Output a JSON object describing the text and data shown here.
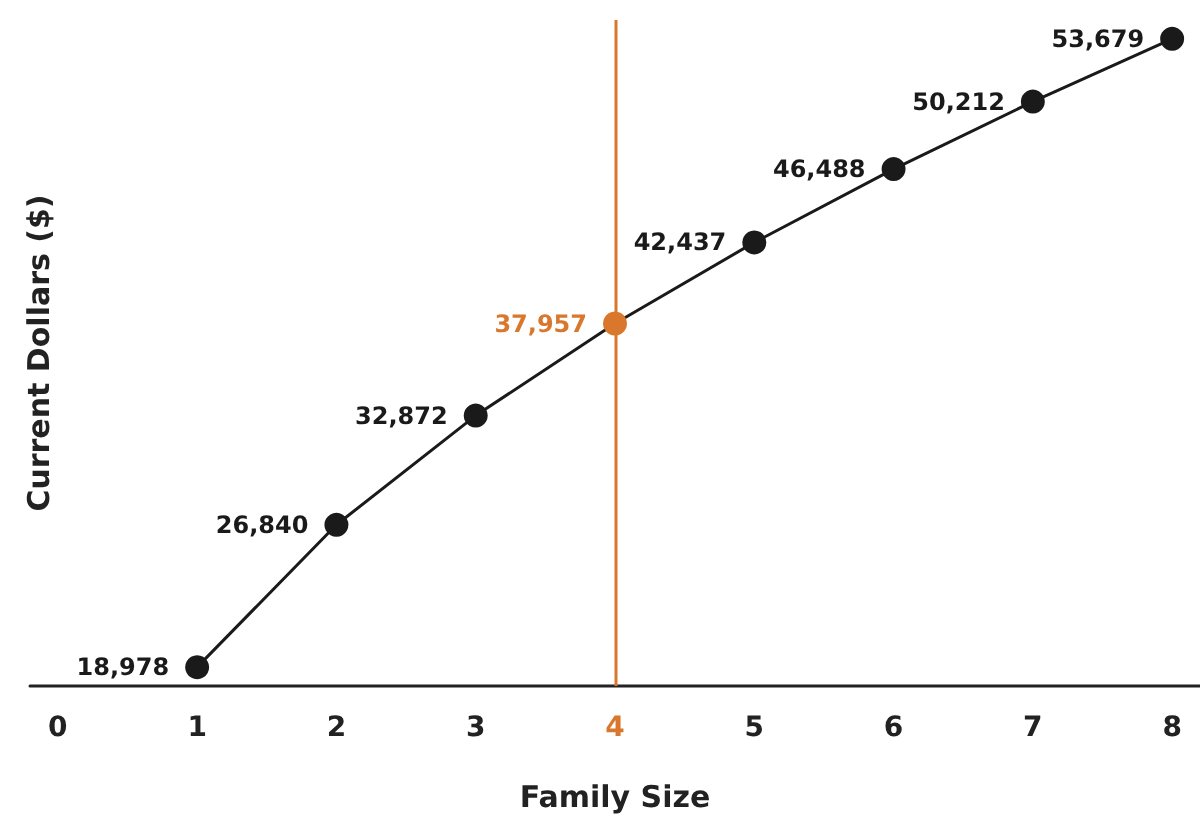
{
  "chart_data": {
    "type": "line",
    "xlabel": "Family Size",
    "ylabel": "Current Dollars ($)",
    "x": [
      1,
      2,
      3,
      4,
      5,
      6,
      7,
      8
    ],
    "series": [
      {
        "color": "#1a1a1a",
        "colors": [
          "#1a1a1a",
          "#1a1a1a",
          "#1a1a1a",
          "#d9782d",
          "#1a1a1a",
          "#1a1a1a",
          "#1a1a1a",
          "#1a1a1a"
        ],
        "values": [
          18978,
          26840,
          32872,
          37957,
          42437,
          46488,
          50212,
          53679
        ],
        "value_labels": [
          "18,978",
          "26,840",
          "32,872",
          "37,957",
          "42,437",
          "46,488",
          "50,212",
          "53,679"
        ]
      }
    ],
    "xlim": [
      -0.2,
      8.2
    ],
    "xticks": [
      0,
      1,
      2,
      3,
      4,
      5,
      6,
      7,
      8
    ],
    "ref_lines": [
      {
        "axis": "x",
        "value": 4,
        "color": "#d9782d",
        "line_style": "solid"
      }
    ],
    "grid": false,
    "marker": "circle",
    "line_style": "solid",
    "tick_labels": "x"
  }
}
